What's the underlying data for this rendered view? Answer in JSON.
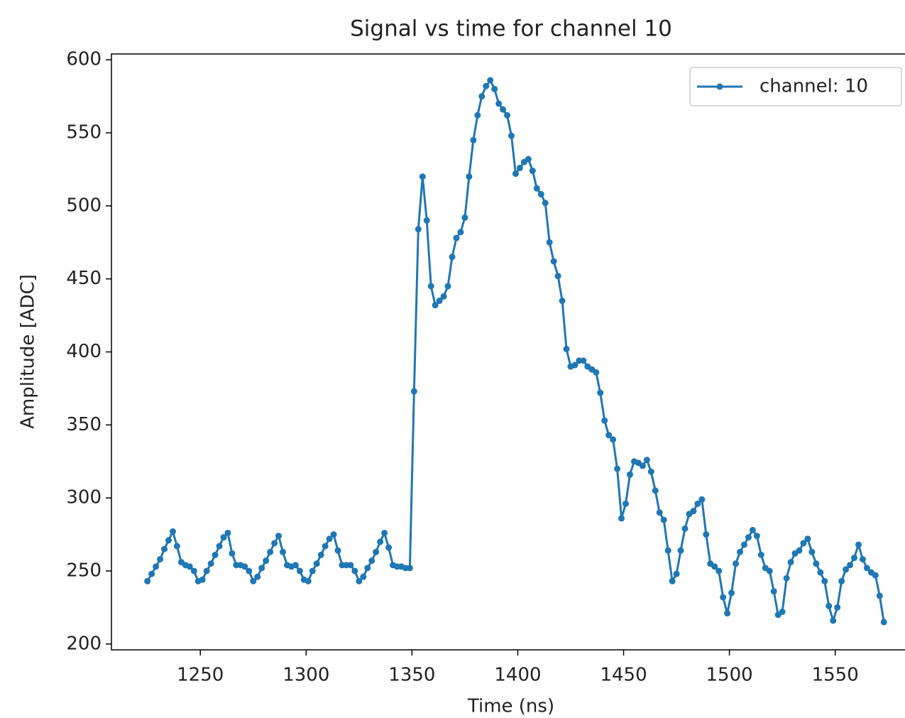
{
  "chart_data": {
    "type": "line",
    "title": "Signal vs time for channel 10",
    "x_label": "Time (ns)",
    "y_label": "Amplitude [ADC]",
    "x": [
      1225,
      1227,
      1229,
      1231,
      1233,
      1235,
      1237,
      1239,
      1241,
      1243,
      1245,
      1247,
      1249,
      1251,
      1253,
      1255,
      1257,
      1259,
      1261,
      1263,
      1265,
      1267,
      1269,
      1271,
      1273,
      1275,
      1277,
      1279,
      1281,
      1283,
      1285,
      1287,
      1289,
      1291,
      1293,
      1295,
      1297,
      1299,
      1301,
      1303,
      1305,
      1307,
      1309,
      1311,
      1313,
      1315,
      1317,
      1319,
      1321,
      1323,
      1325,
      1327,
      1329,
      1331,
      1333,
      1335,
      1337,
      1339,
      1341,
      1343,
      1345,
      1347,
      1349,
      1351,
      1353,
      1355,
      1357,
      1359,
      1361,
      1363,
      1365,
      1367,
      1369,
      1371,
      1373,
      1375,
      1377,
      1379,
      1381,
      1383,
      1385,
      1387,
      1389,
      1391,
      1393,
      1395,
      1397,
      1399,
      1401,
      1403,
      1405,
      1407,
      1409,
      1411,
      1413,
      1415,
      1417,
      1419,
      1421,
      1423,
      1425,
      1427,
      1429,
      1431,
      1433,
      1435,
      1437,
      1439,
      1441,
      1443,
      1445,
      1447,
      1449,
      1451,
      1453,
      1455,
      1457,
      1459,
      1461,
      1463,
      1465,
      1467,
      1469,
      1471,
      1473,
      1475,
      1477,
      1479,
      1481,
      1483,
      1485,
      1487,
      1489,
      1491,
      1493,
      1495,
      1497,
      1499,
      1501,
      1503,
      1505,
      1507,
      1509,
      1511,
      1513,
      1515,
      1517,
      1519,
      1521,
      1523,
      1525,
      1527,
      1529,
      1531,
      1533,
      1535,
      1537,
      1539,
      1541,
      1543,
      1545,
      1547,
      1549,
      1551,
      1553,
      1555,
      1557,
      1559,
      1561,
      1563,
      1565,
      1567,
      1569,
      1571,
      1573
    ],
    "series": [
      {
        "name": "channel: 10",
        "color": "#1f77b4",
        "values": [
          243,
          248,
          253,
          258,
          265,
          271,
          277,
          267,
          256,
          254,
          253,
          250,
          243,
          244,
          250,
          255,
          261,
          267,
          273,
          276,
          262,
          254,
          254,
          253,
          250,
          243,
          246,
          252,
          257,
          263,
          269,
          274,
          263,
          254,
          253,
          254,
          250,
          244,
          243,
          250,
          255,
          261,
          267,
          272,
          275,
          264,
          254,
          254,
          254,
          250,
          243,
          246,
          252,
          257,
          263,
          270,
          276,
          266,
          254,
          253,
          253,
          252,
          252,
          373,
          484,
          520,
          490,
          445,
          432,
          435,
          438,
          445,
          465,
          478,
          482,
          492,
          520,
          545,
          562,
          575,
          582,
          586,
          580,
          570,
          566,
          562,
          548,
          522,
          526,
          530,
          532,
          524,
          512,
          508,
          502,
          475,
          462,
          452,
          435,
          402,
          390,
          391,
          394,
          394,
          390,
          388,
          386,
          372,
          353,
          343,
          340,
          320,
          286,
          296,
          316,
          325,
          324,
          322,
          326,
          318,
          305,
          290,
          285,
          264,
          243,
          248,
          264,
          279,
          289,
          291,
          296,
          299,
          275,
          255,
          253,
          250,
          232,
          221,
          235,
          255,
          263,
          268,
          273,
          278,
          274,
          261,
          252,
          250,
          236,
          220,
          222,
          245,
          256,
          262,
          264,
          269,
          272,
          263,
          255,
          249,
          243,
          226,
          216,
          225,
          243,
          251,
          254,
          259,
          268,
          258,
          252,
          249,
          247,
          233,
          215
        ]
      }
    ],
    "xlim": [
      1208,
      1587
    ],
    "ylim": [
      196,
      604
    ],
    "xticks": [
      1250,
      1300,
      1350,
      1400,
      1450,
      1500,
      1550
    ],
    "yticks": [
      200,
      250,
      300,
      350,
      400,
      450,
      500,
      550,
      600
    ],
    "legend": "upper right"
  }
}
